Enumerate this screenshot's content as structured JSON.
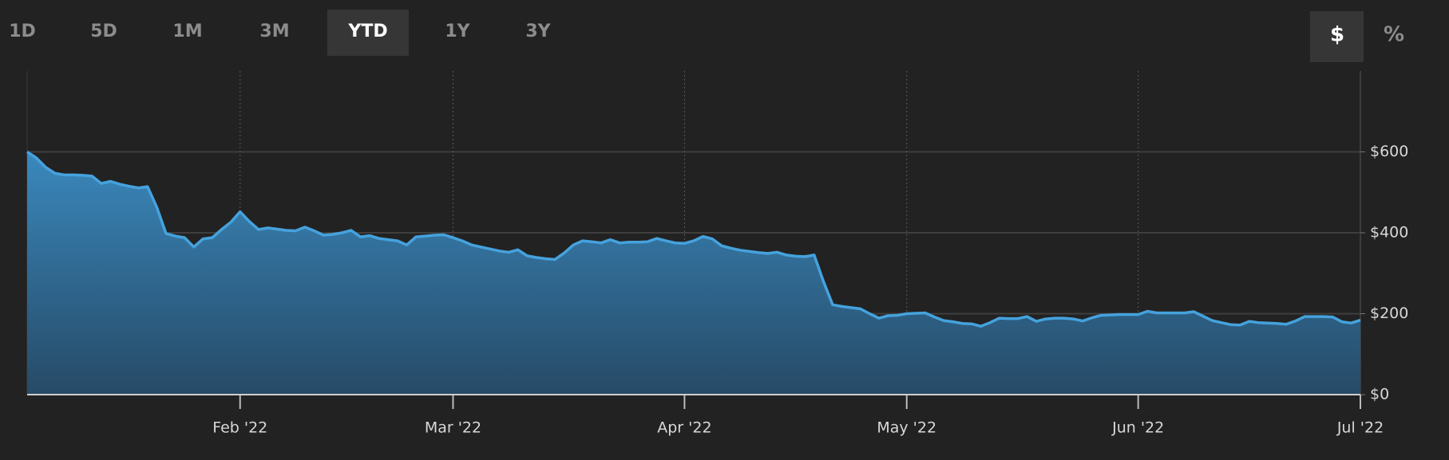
{
  "toolbar": {
    "ranges": [
      "1D",
      "5D",
      "1M",
      "3M",
      "YTD",
      "1Y",
      "3Y"
    ],
    "selected": "YTD",
    "units": [
      "$",
      "%"
    ],
    "selected_unit": "$"
  },
  "chart_data": {
    "type": "area",
    "color": "#45a2dd",
    "grid": true,
    "categories": [
      null,
      null,
      null,
      null,
      null,
      null,
      null,
      null,
      null,
      null,
      null,
      null,
      null,
      null,
      null,
      null,
      null,
      null,
      null,
      null,
      null,
      null,
      null,
      "Feb '22",
      null,
      null,
      null,
      null,
      null,
      null,
      null,
      null,
      null,
      null,
      null,
      null,
      null,
      null,
      null,
      null,
      null,
      null,
      null,
      null,
      null,
      null,
      "Mar '22",
      null,
      null,
      null,
      null,
      null,
      null,
      null,
      null,
      null,
      null,
      null,
      null,
      null,
      null,
      null,
      null,
      null,
      null,
      null,
      null,
      null,
      null,
      null,
      null,
      "Apr '22",
      null,
      null,
      null,
      null,
      null,
      null,
      null,
      null,
      null,
      null,
      null,
      null,
      null,
      null,
      null,
      null,
      null,
      null,
      null,
      null,
      null,
      null,
      null,
      "May '22",
      null,
      null,
      null,
      null,
      null,
      null,
      null,
      null,
      null,
      null,
      null,
      null,
      null,
      null,
      null,
      null,
      null,
      null,
      null,
      null,
      null,
      null,
      null,
      null,
      "Jun '22",
      null,
      null,
      null,
      null,
      null,
      null,
      null,
      null,
      null,
      null,
      null,
      null,
      null,
      null,
      null,
      null,
      null,
      null,
      null,
      null,
      null,
      null,
      null,
      "Jul '22"
    ],
    "values": [
      600,
      585,
      562,
      547,
      543,
      543,
      542,
      540,
      522,
      527,
      520,
      515,
      511,
      514,
      463,
      398,
      392,
      388,
      365,
      385,
      388,
      408,
      426,
      452,
      428,
      408,
      412,
      409,
      406,
      405,
      414,
      405,
      394,
      396,
      400,
      406,
      390,
      393,
      386,
      383,
      380,
      370,
      390,
      392,
      394,
      395,
      388,
      380,
      370,
      365,
      360,
      355,
      352,
      358,
      343,
      339,
      336,
      334,
      350,
      370,
      380,
      378,
      375,
      383,
      375,
      377,
      377,
      378,
      386,
      380,
      375,
      374,
      380,
      391,
      385,
      368,
      362,
      357,
      354,
      351,
      349,
      352,
      345,
      342,
      341,
      345,
      280,
      222,
      218,
      215,
      212,
      200,
      189,
      195,
      196,
      200,
      201,
      202,
      192,
      183,
      180,
      176,
      175,
      169,
      178,
      189,
      188,
      188,
      193,
      181,
      187,
      189,
      189,
      187,
      182,
      190,
      196,
      197,
      198,
      198,
      198,
      206,
      202,
      202,
      202,
      202,
      205,
      194,
      183,
      178,
      173,
      172,
      181,
      178,
      177,
      176,
      174,
      182,
      193,
      193,
      193,
      192,
      180,
      177,
      184
    ],
    "ylim": [
      0,
      800
    ],
    "yticks": [
      {
        "value": 0,
        "label": "$0"
      },
      {
        "value": 200,
        "label": "$200"
      },
      {
        "value": 400,
        "label": "$400"
      },
      {
        "value": 600,
        "label": "$600"
      }
    ]
  }
}
